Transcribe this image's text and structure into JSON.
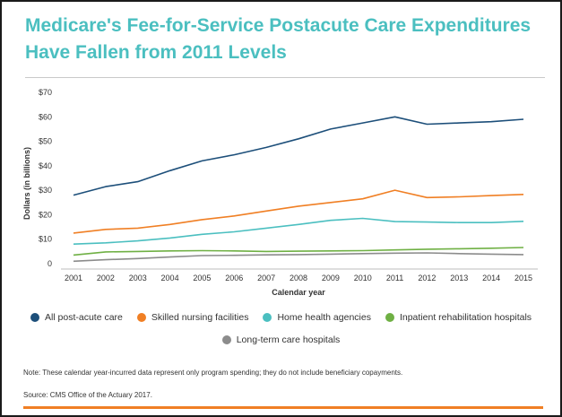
{
  "chart_data": {
    "type": "line",
    "title": "Medicare's Fee-for-Service Postacute Care Expenditures Have Fallen from 2011 Levels",
    "xlabel": "Calendar year",
    "ylabel": "Dollars (in billions)",
    "ylim": [
      0,
      70
    ],
    "yticks": [
      "0",
      "$10",
      "$20",
      "$30",
      "$40",
      "$50",
      "$60",
      "$70"
    ],
    "grid": false,
    "categories": [
      "2001",
      "2002",
      "2003",
      "2004",
      "2005",
      "2006",
      "2007",
      "2008",
      "2009",
      "2010",
      "2011",
      "2012",
      "2013",
      "2014",
      "2015"
    ],
    "series": [
      {
        "name": "All post-acute care",
        "color": "#1d4f7a",
        "values": [
          28,
          31.5,
          33.5,
          38,
          42,
          44.5,
          47.5,
          51,
          55,
          57.5,
          60,
          57,
          57.5,
          58,
          59
        ]
      },
      {
        "name": "Skilled nursing facilities",
        "color": "#f07f24",
        "values": [
          12.5,
          14,
          14.5,
          16,
          18,
          19.5,
          21.5,
          23.5,
          25,
          26.5,
          30,
          27,
          27.3,
          27.8,
          28.3
        ]
      },
      {
        "name": "Home health agencies",
        "color": "#4bbfc0",
        "values": [
          8,
          8.5,
          9.3,
          10.5,
          12,
          13,
          14.5,
          16,
          17.7,
          18.5,
          17.2,
          17,
          16.8,
          16.8,
          17.3
        ]
      },
      {
        "name": "Inpatient rehabilitation hospitals",
        "color": "#6fb044",
        "values": [
          3.5,
          4.8,
          5,
          5.2,
          5.3,
          5.2,
          5,
          5.1,
          5.2,
          5.3,
          5.6,
          5.9,
          6.1,
          6.3,
          6.6
        ]
      },
      {
        "name": "Long-term care hospitals",
        "color": "#8c8c8c",
        "values": [
          1,
          1.6,
          2.1,
          2.7,
          3.3,
          3.4,
          3.6,
          3.7,
          3.9,
          4.1,
          4.3,
          4.4,
          4.1,
          3.9,
          3.7
        ]
      }
    ],
    "legend_position": "bottom"
  },
  "note": "Note: These calendar year-incurred data represent only program spending; they do not include beneficiary copayments.",
  "source": "Source: CMS Office of the Actuary 2017."
}
